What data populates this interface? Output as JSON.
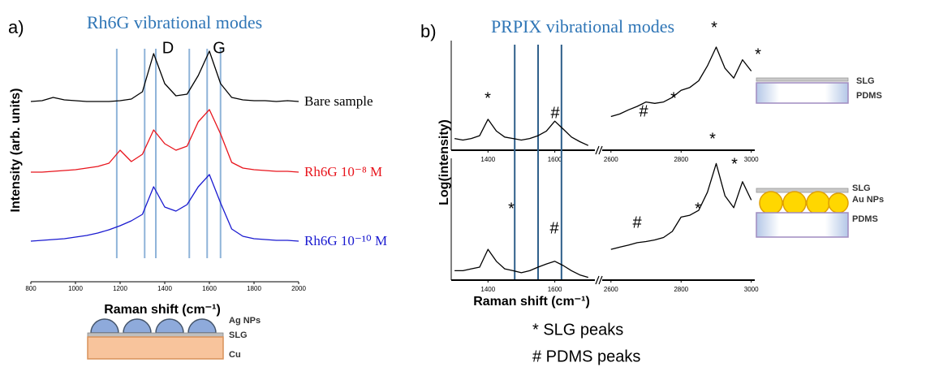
{
  "figure": {
    "panel_labels": [
      "a)",
      "b)"
    ],
    "schematics": [
      {
        "labels": [
          "Ag NPs",
          "SLG",
          "Cu"
        ]
      },
      {
        "labels": [
          "SLG",
          "PDMS"
        ]
      },
      {
        "labels": [
          "SLG",
          "Au NPs",
          "PDMS"
        ]
      }
    ],
    "notes": [
      "* SLG peaks",
      "# PDMS peaks"
    ]
  },
  "chart_data": [
    {
      "type": "line",
      "title": "Rh6G vibrational modes",
      "xlabel": "Raman shift (cm⁻¹)",
      "ylabel": "Intensity (arb. units)",
      "xlim": [
        800,
        2000
      ],
      "xticks": [
        800,
        1000,
        1200,
        1400,
        1600,
        1800,
        2000
      ],
      "mode_lines": [
        1185,
        1310,
        1360,
        1510,
        1590,
        1650
      ],
      "mode_line_color": "#8fb4d9",
      "annotations": [
        "D",
        "G"
      ],
      "x": [
        800,
        850,
        900,
        950,
        1000,
        1050,
        1100,
        1150,
        1200,
        1250,
        1300,
        1350,
        1400,
        1450,
        1500,
        1550,
        1600,
        1650,
        1700,
        1750,
        1800,
        1850,
        1900,
        1950,
        2000
      ],
      "series": [
        {
          "name": "Bare sample",
          "color": "#000000",
          "values": [
            0.3,
            0.4,
            0.8,
            0.5,
            0.4,
            0.3,
            0.3,
            0.3,
            0.4,
            0.6,
            1.5,
            6.2,
            2.5,
            1.0,
            1.2,
            3.5,
            6.5,
            2.5,
            0.8,
            0.5,
            0.4,
            0.4,
            0.3,
            0.4,
            0.3
          ]
        },
        {
          "name": "Rh6G 10⁻⁸ M",
          "color": "#e8141c",
          "values": [
            0.3,
            0.3,
            0.4,
            0.5,
            0.6,
            0.8,
            1.0,
            1.4,
            3.0,
            1.6,
            2.5,
            5.5,
            3.8,
            3.0,
            3.5,
            6.5,
            8.0,
            5.0,
            1.5,
            0.8,
            0.6,
            0.5,
            0.4,
            0.4,
            0.3
          ]
        },
        {
          "name": "Rh6G 10⁻¹⁰ M",
          "color": "#1a1ad0",
          "values": [
            0.3,
            0.4,
            0.5,
            0.6,
            0.8,
            1.0,
            1.3,
            1.7,
            2.2,
            2.8,
            3.6,
            7.0,
            4.5,
            4.0,
            4.8,
            7.0,
            8.5,
            5.0,
            1.8,
            0.9,
            0.6,
            0.5,
            0.4,
            0.4,
            0.3
          ]
        }
      ]
    },
    {
      "type": "line",
      "title": "PRPIX vibrational modes",
      "ylabel": "Log(intensity)",
      "log_y": true,
      "ylim": [
        0.8,
        150
      ],
      "xlim": [
        [
          1290,
          1720
        ],
        [
          2575,
          3010
        ]
      ],
      "xticks": [
        1400,
        1600,
        2600,
        2800,
        3000
      ],
      "mode_lines": [
        1480,
        1550,
        1620
      ],
      "mode_line_color": "#2e5f8a",
      "annotations": [
        "*",
        "#",
        "#",
        "*",
        "*",
        "*"
      ],
      "x": [
        1300,
        1325,
        1350,
        1375,
        1400,
        1425,
        1450,
        1475,
        1500,
        1525,
        1550,
        1575,
        1600,
        1625,
        1650,
        1675,
        1700,
        2600,
        2625,
        2650,
        2675,
        2700,
        2725,
        2750,
        2775,
        2800,
        2825,
        2850,
        2875,
        2900,
        2925,
        2950,
        2975,
        3000
      ],
      "series": [
        {
          "color": "#000000",
          "values": [
            1.4,
            1.3,
            1.4,
            1.6,
            3.5,
            2.0,
            1.5,
            1.4,
            1.3,
            1.4,
            1.6,
            2.0,
            3.2,
            2.2,
            1.5,
            1.2,
            1.0,
            4,
            4.5,
            5.5,
            6.5,
            8,
            7.5,
            8,
            10,
            14,
            16,
            22,
            45,
            110,
            40,
            25,
            60,
            35
          ]
        }
      ]
    },
    {
      "type": "line",
      "xlabel": "Raman shift (cm⁻¹)",
      "log_y": true,
      "ylim": [
        0.8,
        150
      ],
      "xlim": [
        [
          1290,
          1720
        ],
        [
          2575,
          3010
        ]
      ],
      "xticks": [
        1400,
        1600,
        2600,
        2800,
        3000
      ],
      "annotations": [
        "*",
        "#",
        "#",
        "*",
        "*",
        "*"
      ],
      "x": [
        1300,
        1325,
        1350,
        1375,
        1400,
        1425,
        1450,
        1475,
        1500,
        1525,
        1550,
        1575,
        1600,
        1625,
        1650,
        1675,
        1700,
        2600,
        2625,
        2650,
        2675,
        2700,
        2725,
        2750,
        2775,
        2800,
        2825,
        2850,
        2875,
        2900,
        2925,
        2950,
        2975,
        3000
      ],
      "series": [
        {
          "color": "#000000",
          "values": [
            1.2,
            1.2,
            1.3,
            1.4,
            3.0,
            1.8,
            1.3,
            1.2,
            1.1,
            1.2,
            1.4,
            1.6,
            1.8,
            1.5,
            1.2,
            1.0,
            0.9,
            3,
            3.3,
            3.6,
            4,
            4.2,
            4.5,
            5,
            6.5,
            12,
            13,
            16,
            35,
            120,
            30,
            18,
            55,
            25
          ]
        }
      ]
    }
  ]
}
